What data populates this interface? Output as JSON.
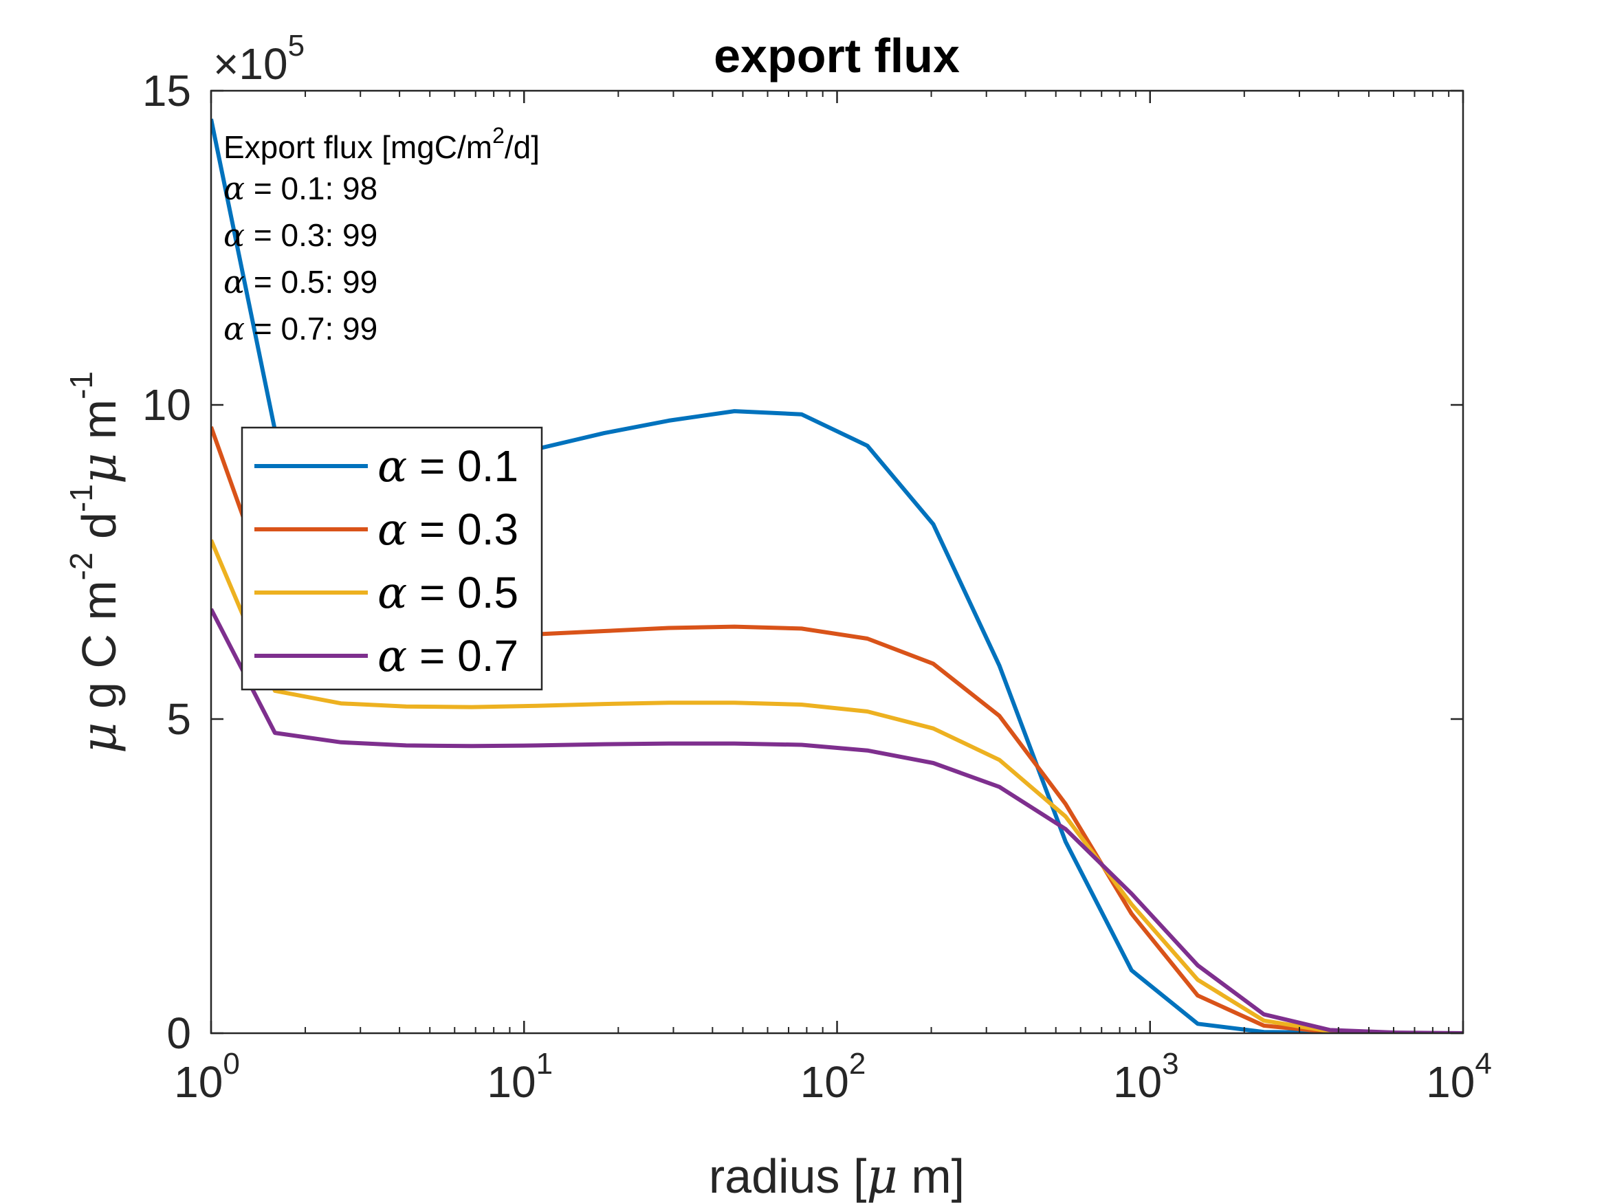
{
  "chart_data": {
    "type": "line",
    "title": "export flux",
    "xlabel_parts": [
      {
        "text": "radius [",
        "greek": false
      },
      {
        "text": "μ",
        "greek": true
      },
      {
        "text": " m]",
        "greek": false
      }
    ],
    "ylabel_parts": [
      {
        "text": "μ",
        "greek": true,
        "sup": false
      },
      {
        "text": " g C m",
        "greek": false,
        "sup": false
      },
      {
        "text": "-2",
        "greek": false,
        "sup": true
      },
      {
        "text": " d",
        "greek": false,
        "sup": false
      },
      {
        "text": "-1",
        "greek": false,
        "sup": true
      },
      {
        "text": "μ",
        "greek": true,
        "sup": false
      },
      {
        "text": " m",
        "greek": false,
        "sup": false
      },
      {
        "text": "-1",
        "greek": false,
        "sup": true
      }
    ],
    "x_scale": "log",
    "xlim": [
      1,
      10000
    ],
    "ylim": [
      0,
      1500000
    ],
    "y_multiplier": {
      "times": "×",
      "base": "10",
      "exponent": "5"
    },
    "x_ticks": [
      {
        "value": 1,
        "base": "10",
        "exp": "0"
      },
      {
        "value": 10,
        "base": "10",
        "exp": "1"
      },
      {
        "value": 100,
        "base": "10",
        "exp": "2"
      },
      {
        "value": 1000,
        "base": "10",
        "exp": "3"
      },
      {
        "value": 10000,
        "base": "10",
        "exp": "4"
      }
    ],
    "y_ticks": [
      {
        "value": 0,
        "label": "0"
      },
      {
        "value": 500000,
        "label": "5"
      },
      {
        "value": 1000000,
        "label": "10"
      },
      {
        "value": 1500000,
        "label": "15"
      }
    ],
    "grid": false,
    "legend_position": "upper-left",
    "x": [
      1,
      1.6,
      2.6,
      4.2,
      6.8,
      11,
      18,
      29,
      47,
      77,
      125,
      203,
      330,
      537,
      873,
      1420,
      2310,
      3760,
      6120,
      10000
    ],
    "series": [
      {
        "name": "α = 0.1",
        "greek": "α",
        "rest": " = 0.1",
        "color": "#0072BD",
        "values": [
          1455000,
          960000,
          920000,
          920000,
          920000,
          930000,
          955000,
          975000,
          990000,
          985000,
          935000,
          810000,
          585000,
          305000,
          100000,
          15000,
          2000,
          1000,
          0,
          0
        ]
      },
      {
        "name": "α = 0.3",
        "greek": "α",
        "rest": " = 0.3",
        "color": "#D95319",
        "values": [
          965000,
          680000,
          625000,
          625000,
          630000,
          635000,
          640000,
          645000,
          647000,
          644000,
          628000,
          588000,
          505000,
          365000,
          190000,
          60000,
          12000,
          2000,
          0,
          0
        ]
      },
      {
        "name": "α = 0.5",
        "greek": "α",
        "rest": " = 0.5",
        "color": "#EDB120",
        "values": [
          785000,
          545000,
          525000,
          520000,
          519000,
          521000,
          524000,
          526000,
          526000,
          523000,
          512000,
          485000,
          435000,
          345000,
          205000,
          85000,
          20000,
          3000,
          0,
          0
        ]
      },
      {
        "name": "α = 0.7",
        "greek": "α",
        "rest": " = 0.7",
        "color": "#7E2F8E",
        "values": [
          675000,
          478000,
          463000,
          458000,
          457000,
          458000,
          460000,
          461000,
          461000,
          459000,
          450000,
          430000,
          392000,
          325000,
          222000,
          108000,
          30000,
          5000,
          1000,
          0
        ]
      }
    ],
    "annotation": {
      "header_before_sup": "Export flux [mgC/m",
      "header_sup": "2",
      "header_after_sup": "/d]",
      "lines": [
        {
          "greek": "α",
          "rest": " = 0.1: 98"
        },
        {
          "greek": "α",
          "rest": " = 0.3: 99"
        },
        {
          "greek": "α",
          "rest": " = 0.5: 99"
        },
        {
          "greek": "α",
          "rest": " = 0.7: 99"
        }
      ]
    }
  }
}
